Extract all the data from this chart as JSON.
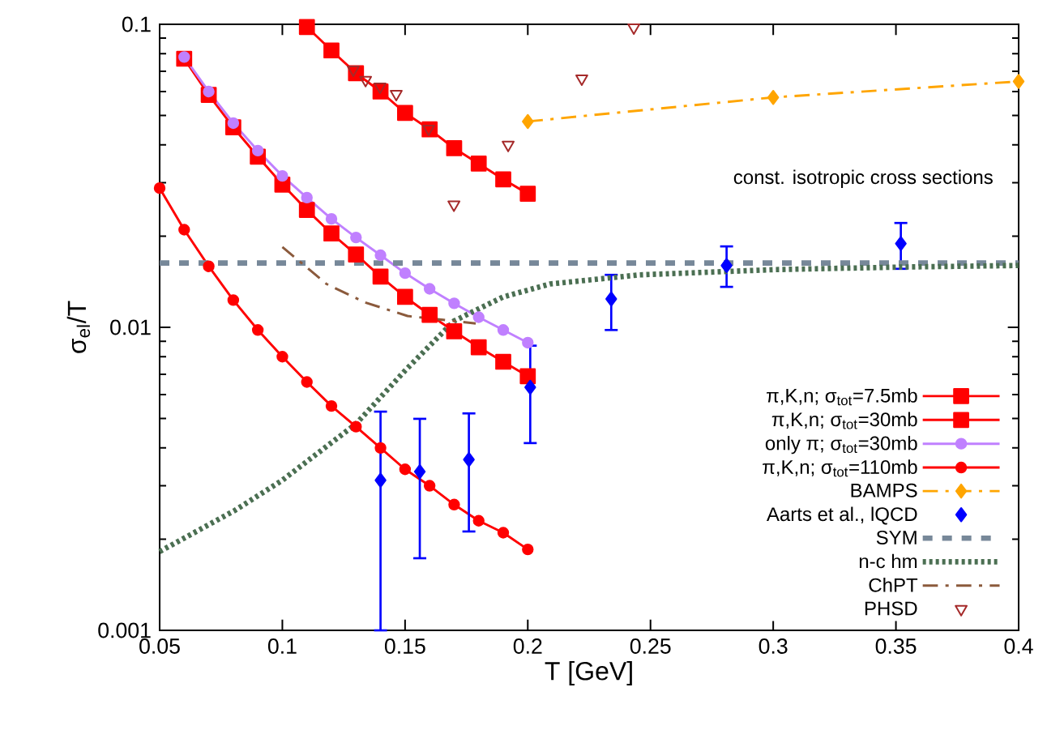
{
  "chart_data": {
    "type": "line",
    "xlabel": "T [GeV]",
    "ylabel": "σ$_{el}$/T",
    "log": "y",
    "xlim": [
      0.05,
      0.4
    ],
    "ylim": [
      0.001,
      0.1
    ],
    "xticks": [
      0.05,
      0.1,
      0.15,
      0.2,
      0.25,
      0.3,
      0.35,
      0.4
    ],
    "yticks": [
      0.001,
      0.01,
      0.1
    ],
    "legend": "bottom right",
    "grid": false,
    "annotations": [
      "const. isotropic cross sections"
    ],
    "series": [
      {
        "name": "π,K,n; σ$_{tot}$=7.5mb",
        "color": "#ff0000",
        "marker": "square",
        "line_style": "solid",
        "x": [
          0.11,
          0.12,
          0.13,
          0.14,
          0.15,
          0.16,
          0.17,
          0.18,
          0.19,
          0.2
        ],
        "values": [
          0.098,
          0.082,
          0.069,
          0.06,
          0.051,
          0.045,
          0.039,
          0.0347,
          0.0308,
          0.0276
        ]
      },
      {
        "name": "π,K,n; σ$_{tot}$=30mb",
        "color": "#ff0000",
        "marker": "square",
        "line_style": "solid",
        "x": [
          0.06,
          0.07,
          0.08,
          0.09,
          0.1,
          0.11,
          0.12,
          0.13,
          0.14,
          0.15,
          0.16,
          0.17,
          0.18,
          0.19,
          0.2
        ],
        "values": [
          0.077,
          0.0585,
          0.0457,
          0.0366,
          0.0296,
          0.0244,
          0.0204,
          0.0174,
          0.0147,
          0.0126,
          0.011,
          0.0097,
          0.0086,
          0.0077,
          0.0069
        ]
      },
      {
        "name": "only π; σ$_{tot}$=30mb",
        "color": "#c080ff",
        "marker": "circle",
        "line_style": "solid",
        "x": [
          0.06,
          0.07,
          0.08,
          0.09,
          0.1,
          0.11,
          0.12,
          0.13,
          0.14,
          0.15,
          0.16,
          0.17,
          0.18,
          0.19,
          0.2
        ],
        "values": [
          0.078,
          0.06,
          0.0472,
          0.0383,
          0.0316,
          0.0268,
          0.0228,
          0.0198,
          0.0173,
          0.0151,
          0.0134,
          0.012,
          0.0108,
          0.0098,
          0.0089
        ]
      },
      {
        "name": "π,K,n; σ$_{tot}$=110mb",
        "color": "#ff0000",
        "marker": "circle",
        "line_style": "solid",
        "x": [
          0.05,
          0.06,
          0.07,
          0.08,
          0.09,
          0.1,
          0.11,
          0.12,
          0.13,
          0.14,
          0.15,
          0.16,
          0.17,
          0.18,
          0.19,
          0.2
        ],
        "values": [
          0.0288,
          0.021,
          0.0159,
          0.0123,
          0.0098,
          0.008,
          0.0066,
          0.0055,
          0.0047,
          0.004,
          0.0034,
          0.003,
          0.0026,
          0.0023,
          0.0021,
          0.00185
        ]
      },
      {
        "name": "BAMPS",
        "color": "#ffa500",
        "marker": "diamond",
        "line_style": "dashdot",
        "x": [
          0.2,
          0.3,
          0.4
        ],
        "values": [
          0.0478,
          0.0574,
          0.0648
        ]
      },
      {
        "name": "Aarts et al., lQCD",
        "color": "#0000ff",
        "marker": "diamond",
        "type": "scatter",
        "x": [
          0.14,
          0.156,
          0.176,
          0.201,
          0.234,
          0.281,
          0.352
        ],
        "values": [
          0.00313,
          0.00334,
          0.00366,
          0.00634,
          0.0124,
          0.016,
          0.0189
        ],
        "errors": [
          [
            0.001,
            0.00527
          ],
          [
            0.00173,
            0.00499
          ],
          [
            0.00212,
            0.0052
          ],
          [
            0.00415,
            0.0087
          ],
          [
            0.0098,
            0.0149
          ],
          [
            0.0136,
            0.0185
          ],
          [
            0.0156,
            0.0221
          ]
        ]
      },
      {
        "name": "SYM",
        "color": "#778899",
        "marker": "none",
        "line_style": "dashed",
        "x": [
          0.05,
          0.4
        ],
        "values": [
          0.0163,
          0.0163
        ]
      },
      {
        "name": "n-c hm",
        "color": "#4b6f52",
        "marker": "none",
        "line_style": "dotted",
        "x": [
          0.05,
          0.0807,
          0.1,
          0.13,
          0.15,
          0.17,
          0.19,
          0.209,
          0.2455,
          0.3,
          0.35,
          0.4
        ],
        "values": [
          0.00182,
          0.00249,
          0.00313,
          0.0048,
          0.0072,
          0.0105,
          0.0126,
          0.0139,
          0.0149,
          0.0155,
          0.0158,
          0.016
        ]
      },
      {
        "name": "ChPT",
        "color": "#8b5a3c",
        "marker": "none",
        "line_style": "dashdot",
        "x": [
          0.1,
          0.118,
          0.1335,
          0.151,
          0.1788
        ],
        "values": [
          0.0184,
          0.0139,
          0.0121,
          0.0109,
          0.0103
        ]
      },
      {
        "name": "PHSD",
        "color": "#a52a2a",
        "marker": "triangle",
        "type": "scatter",
        "x": [
          0.1289,
          0.1339,
          0.1398,
          0.1464,
          0.1596,
          0.1699,
          0.192,
          0.222,
          0.2432
        ],
        "values": [
          0.0708,
          0.0655,
          0.0623,
          0.0589,
          0.0452,
          0.0254,
          0.04,
          0.0662,
          0.0976
        ]
      }
    ]
  }
}
